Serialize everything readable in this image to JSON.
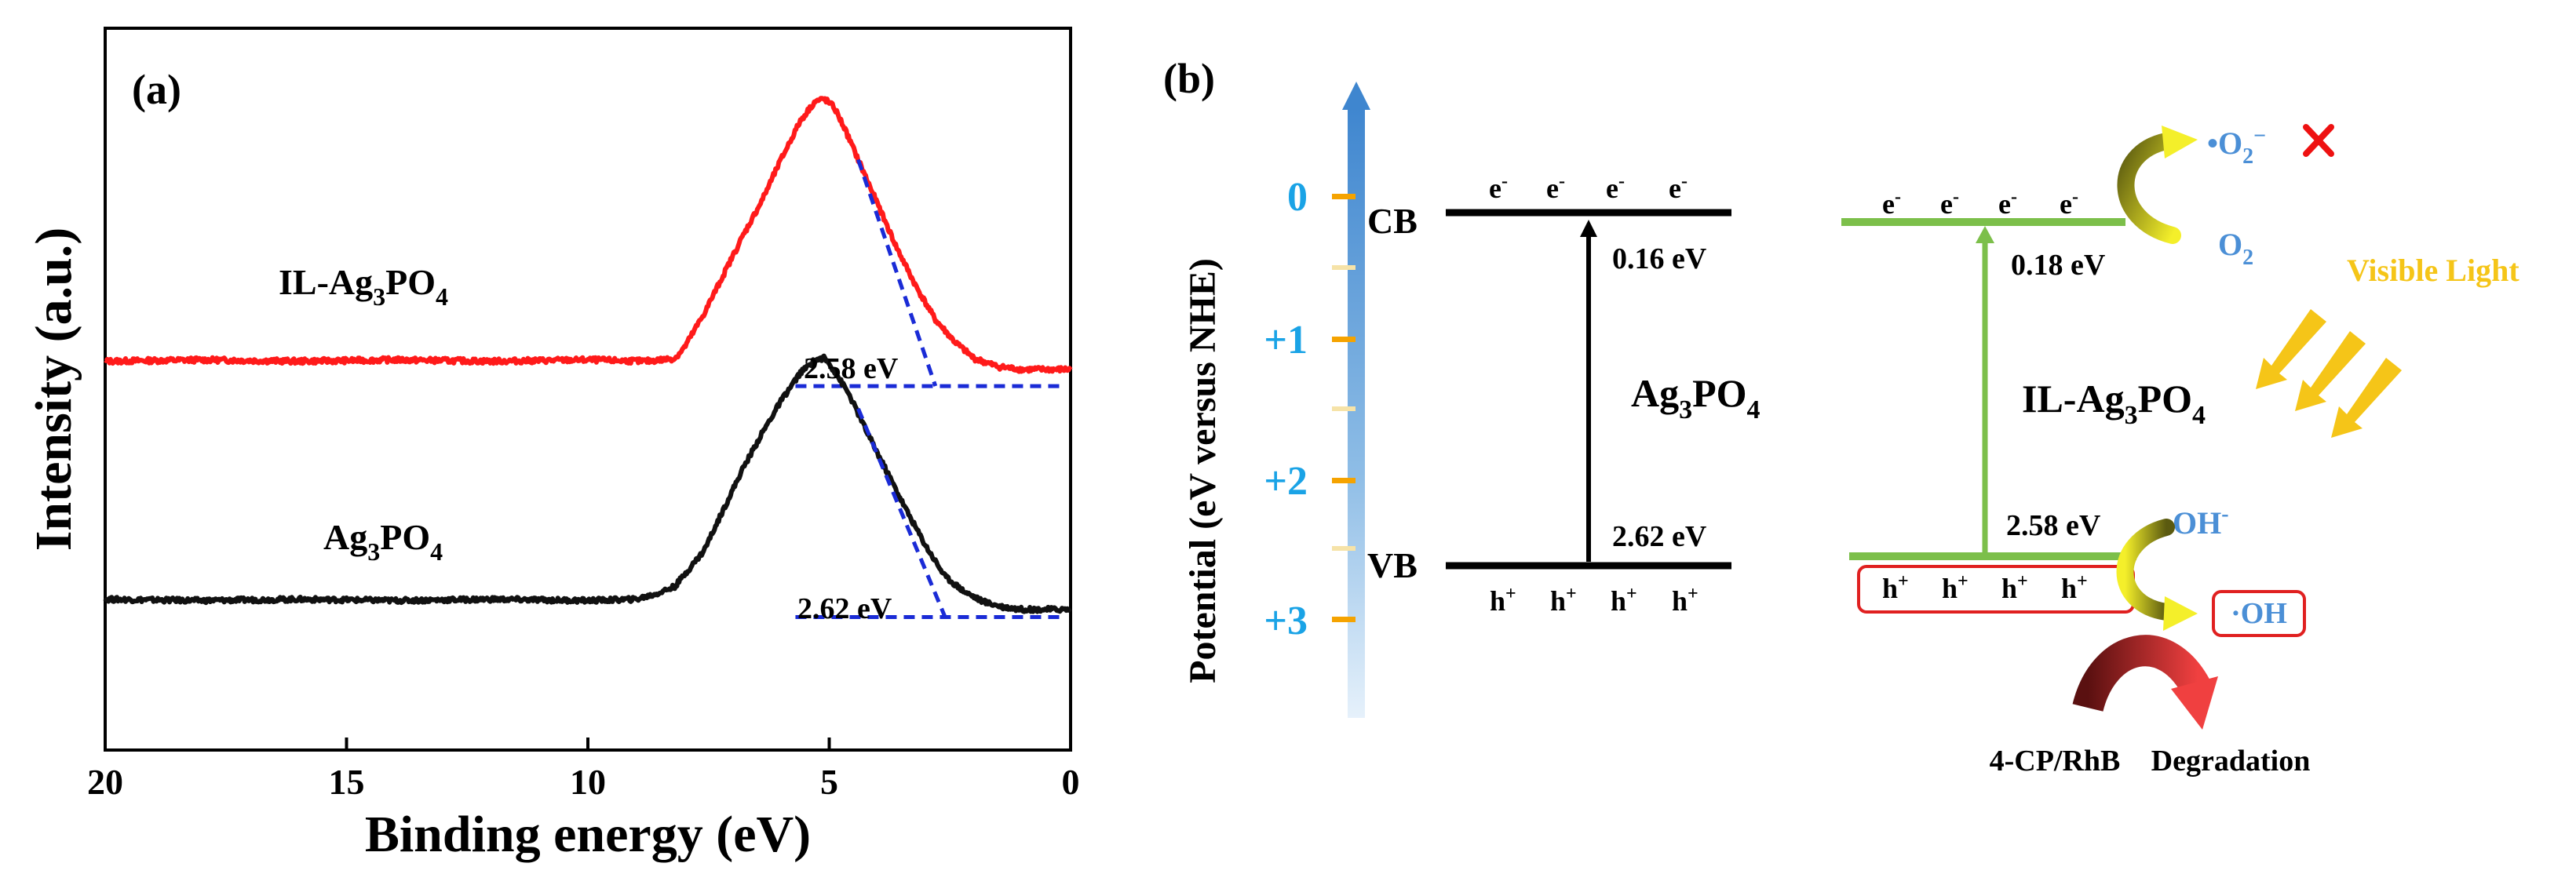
{
  "colors": {
    "red_trace": "#ff1a1a",
    "black_trace": "#111111",
    "fit_blue": "#1a2bd6",
    "tick_orange": "#f5a300",
    "tick_label_cyan": "#1aa3e6",
    "arrow_blue": "#4a8fd0",
    "green_band": "#7cbf4a",
    "species_blue": "#4b8fd6",
    "visible_light": "#f5c518",
    "red_box": "#e02020",
    "cross_red": "#ee1111"
  },
  "panel_a": {
    "label": "(a)",
    "trace_labels": {
      "il": [
        "IL-Ag",
        "3",
        "PO",
        "4"
      ],
      "ag": [
        "Ag",
        "3",
        "PO",
        "4"
      ]
    },
    "annotations": {
      "il_gap": "2.58 eV",
      "ag_gap": "2.62 eV"
    }
  },
  "chart_data": {
    "type": "line",
    "title": "",
    "xlabel": "Binding energy (eV)",
    "ylabel": "Intensity (a.u.)",
    "xlim": [
      20,
      0
    ],
    "x_reversed": true,
    "x_ticks": [
      20,
      15,
      10,
      5,
      0
    ],
    "y_ticks_shown": false,
    "series": [
      {
        "name": "IL-Ag3PO4",
        "color": "#ff1a1a",
        "x": [
          20,
          18,
          16,
          14,
          12,
          10,
          8.8,
          8.2,
          8.0,
          7.6,
          7.2,
          6.8,
          6.4,
          6.0,
          5.6,
          5.3,
          5.1,
          4.9,
          4.7,
          4.4,
          4.0,
          3.6,
          3.2,
          2.8,
          2.4,
          2.0,
          1.5,
          1.0,
          0.5,
          0
        ],
        "y": [
          0.05,
          0.055,
          0.05,
          0.055,
          0.05,
          0.055,
          0.05,
          0.06,
          0.1,
          0.22,
          0.36,
          0.5,
          0.63,
          0.78,
          0.92,
          0.99,
          1.0,
          0.97,
          0.9,
          0.78,
          0.62,
          0.46,
          0.32,
          0.2,
          0.12,
          0.06,
          0.03,
          0.02,
          0.02,
          0.02
        ],
        "fit_line": [
          [
            4.4,
            0.78
          ],
          [
            2.8,
            -0.04
          ]
        ],
        "baseline": [
          [
            5.7,
            -0.04
          ],
          [
            0.2,
            -0.04
          ]
        ],
        "band_edge_eV": 2.58
      },
      {
        "name": "Ag3PO4",
        "color": "#111111",
        "x": [
          20,
          18,
          16,
          14,
          12,
          10,
          9,
          8.6,
          8.2,
          7.6,
          7.2,
          6.8,
          6.4,
          6.0,
          5.6,
          5.3,
          5.1,
          4.9,
          4.6,
          4.2,
          3.8,
          3.4,
          3.0,
          2.6,
          2.2,
          1.8,
          1.4,
          1.0,
          0.5,
          0
        ],
        "y": [
          0.05,
          0.045,
          0.05,
          0.045,
          0.05,
          0.045,
          0.05,
          0.07,
          0.1,
          0.24,
          0.4,
          0.56,
          0.7,
          0.83,
          0.94,
          0.99,
          1.0,
          0.95,
          0.86,
          0.7,
          0.55,
          0.4,
          0.26,
          0.14,
          0.08,
          0.04,
          0.02,
          0.01,
          0.01,
          0.01
        ],
        "fit_line": [
          [
            4.4,
            0.8
          ],
          [
            2.6,
            -0.02
          ]
        ],
        "baseline": [
          [
            5.7,
            -0.02
          ],
          [
            0.2,
            -0.02
          ]
        ],
        "band_edge_eV": 2.62
      }
    ]
  },
  "panel_b": {
    "label": "(b)",
    "y_axis_label": "Potential (eV versus NHE)",
    "potential_ticks": [
      "0",
      "+1",
      "+2",
      "+3"
    ],
    "ag3po4": {
      "cb_label": "CB",
      "vb_label": "VB",
      "electrons": [
        "e",
        "e",
        "e",
        "e"
      ],
      "electron_sup": "-",
      "holes": [
        "h",
        "h",
        "h",
        "h"
      ],
      "hole_sup": "+",
      "cb_offset": "0.16 eV",
      "vb_offset": "2.62 eV",
      "material": [
        "Ag",
        "3",
        "PO",
        "4"
      ]
    },
    "il_ag3po4": {
      "electrons": [
        "e",
        "e",
        "e",
        "e"
      ],
      "electron_sup": "-",
      "holes": [
        "h",
        "h",
        "h",
        "h"
      ],
      "hole_sup": "+",
      "cb_offset": "0.18 eV",
      "vb_offset": "2.58 eV",
      "material": [
        "IL-Ag",
        "3",
        "PO",
        "4"
      ],
      "superoxide": [
        "•O",
        "2",
        "−"
      ],
      "oxygen": [
        "O",
        "2"
      ],
      "visible_light": "Visible Light",
      "hydroxide": [
        "OH",
        "-"
      ],
      "hydroxyl_radical": "·OH",
      "pollutant": "4-CP/RhB",
      "product": "Degradation"
    }
  }
}
